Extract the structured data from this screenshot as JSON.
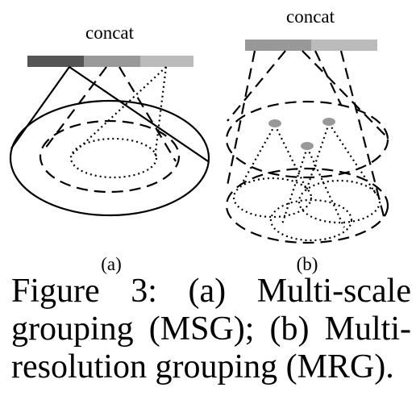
{
  "panel_a": {
    "bar_label": "concat",
    "sub_label": "(a)",
    "bar_colors": [
      "#555555",
      "#999999",
      "#bbbbbb"
    ]
  },
  "panel_b": {
    "bar_label": "concat",
    "sub_label": "(b)",
    "bar_colors": [
      "#999999",
      "#bbbbbb"
    ],
    "point_color": "#999999"
  },
  "caption": {
    "line1": "Figure 3:  (a) Multi-scale",
    "line2": "grouping (MSG); (b) Multi-",
    "line3": "resolution grouping (MRG)."
  }
}
